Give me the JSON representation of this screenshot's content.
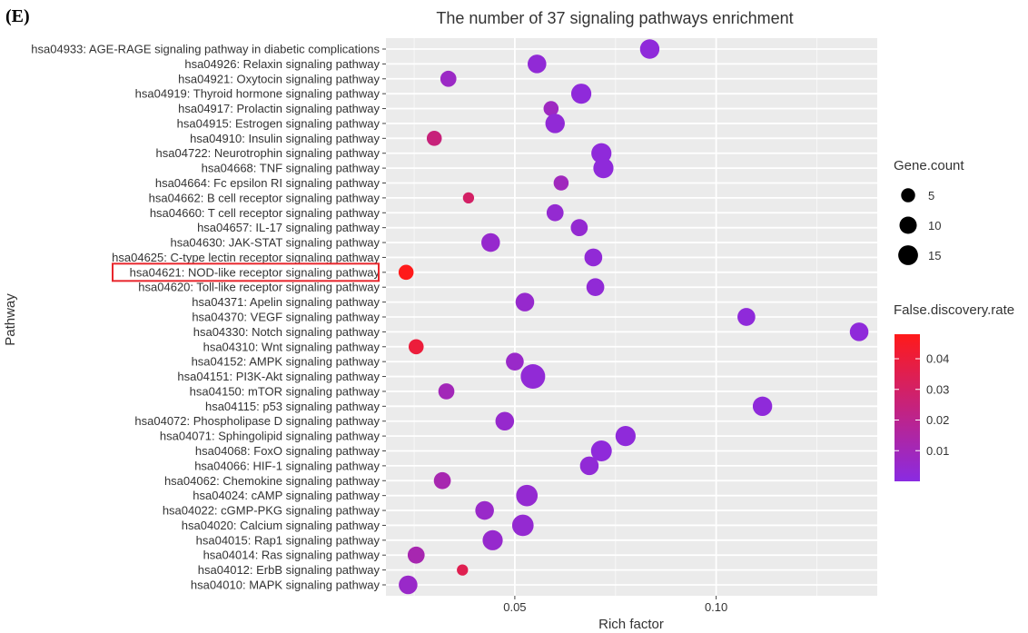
{
  "panel_label": "(E)",
  "chart_data": {
    "type": "scatter",
    "title": "The number of 37 signaling pathways enrichment",
    "xlabel": "Rich factor",
    "ylabel": "Pathway",
    "xlim": [
      0.018,
      0.14
    ],
    "xticks": [
      0.05,
      0.1
    ],
    "xtick_labels": [
      "0.05",
      "0.10"
    ],
    "grid": true,
    "highlighted_pathway": "hsa04621: NOD-like receptor signaling pathway",
    "highlight_color": "#e8262c",
    "size_legend": {
      "title": "Gene.count",
      "values": [
        5,
        10,
        15
      ],
      "labels": [
        "5",
        "10",
        "15"
      ]
    },
    "color_legend": {
      "title": "False.discovery.rate",
      "range": [
        0.0,
        0.048
      ],
      "ticks": [
        0.01,
        0.02,
        0.03,
        0.04
      ],
      "tick_labels": [
        "0.01",
        "0.02",
        "0.03",
        "0.04"
      ],
      "low_color": "#8a2be2",
      "high_color": "#ff1a1a"
    },
    "points": [
      {
        "pathway": "hsa04933: AGE-RAGE signaling pathway in diabetic complications",
        "rich_factor": 0.0835,
        "gene_count": 10,
        "fdr": 0.002
      },
      {
        "pathway": "hsa04926: Relaxin signaling pathway",
        "rich_factor": 0.0555,
        "gene_count": 9,
        "fdr": 0.003
      },
      {
        "pathway": "hsa04921: Oxytocin signaling pathway",
        "rich_factor": 0.0335,
        "gene_count": 6,
        "fdr": 0.007
      },
      {
        "pathway": "hsa04919: Thyroid hormone signaling pathway",
        "rich_factor": 0.0665,
        "gene_count": 11,
        "fdr": 0.002
      },
      {
        "pathway": "hsa04917: Prolactin signaling pathway",
        "rich_factor": 0.059,
        "gene_count": 5,
        "fdr": 0.008
      },
      {
        "pathway": "hsa04915: Estrogen signaling pathway",
        "rich_factor": 0.06,
        "gene_count": 10,
        "fdr": 0.003
      },
      {
        "pathway": "hsa04910: Insulin signaling pathway",
        "rich_factor": 0.03,
        "gene_count": 5,
        "fdr": 0.025
      },
      {
        "pathway": "hsa04722: Neurotrophin signaling pathway",
        "rich_factor": 0.0715,
        "gene_count": 11,
        "fdr": 0.002
      },
      {
        "pathway": "hsa04668: TNF signaling pathway",
        "rich_factor": 0.072,
        "gene_count": 11,
        "fdr": 0.002
      },
      {
        "pathway": "hsa04664: Fc epsilon RI signaling pathway",
        "rich_factor": 0.0615,
        "gene_count": 5,
        "fdr": 0.009
      },
      {
        "pathway": "hsa04662: B cell receptor signaling pathway",
        "rich_factor": 0.0385,
        "gene_count": 2,
        "fdr": 0.03
      },
      {
        "pathway": "hsa04660: T cell receptor signaling pathway",
        "rich_factor": 0.06,
        "gene_count": 7,
        "fdr": 0.004
      },
      {
        "pathway": "hsa04657: IL-17 signaling pathway",
        "rich_factor": 0.066,
        "gene_count": 7,
        "fdr": 0.004
      },
      {
        "pathway": "hsa04630: JAK-STAT signaling pathway",
        "rich_factor": 0.044,
        "gene_count": 9,
        "fdr": 0.005
      },
      {
        "pathway": "hsa04625: C-type lectin receptor signaling pathway",
        "rich_factor": 0.0695,
        "gene_count": 8,
        "fdr": 0.003
      },
      {
        "pathway": "hsa04621: NOD-like receptor signaling pathway",
        "rich_factor": 0.023,
        "gene_count": 5,
        "fdr": 0.048
      },
      {
        "pathway": "hsa04620: Toll-like receptor signaling pathway",
        "rich_factor": 0.07,
        "gene_count": 8,
        "fdr": 0.003
      },
      {
        "pathway": "hsa04371: Apelin signaling pathway",
        "rich_factor": 0.0525,
        "gene_count": 9,
        "fdr": 0.005
      },
      {
        "pathway": "hsa04370: VEGF signaling pathway",
        "rich_factor": 0.1075,
        "gene_count": 8,
        "fdr": 0.002
      },
      {
        "pathway": "hsa04330: Notch signaling pathway",
        "rich_factor": 0.1355,
        "gene_count": 9,
        "fdr": 0.002
      },
      {
        "pathway": "hsa04310: Wnt signaling pathway",
        "rich_factor": 0.0255,
        "gene_count": 5,
        "fdr": 0.04
      },
      {
        "pathway": "hsa04152: AMPK signaling pathway",
        "rich_factor": 0.05,
        "gene_count": 8,
        "fdr": 0.006
      },
      {
        "pathway": "hsa04151: PI3K-Akt signaling pathway",
        "rich_factor": 0.0545,
        "gene_count": 18,
        "fdr": 0.003
      },
      {
        "pathway": "hsa04150: mTOR signaling pathway",
        "rich_factor": 0.033,
        "gene_count": 6,
        "fdr": 0.01
      },
      {
        "pathway": "hsa04115: p53 signaling pathway",
        "rich_factor": 0.1115,
        "gene_count": 10,
        "fdr": 0.002
      },
      {
        "pathway": "hsa04072: Phospholipase D signaling pathway",
        "rich_factor": 0.0475,
        "gene_count": 9,
        "fdr": 0.005
      },
      {
        "pathway": "hsa04071: Sphingolipid signaling pathway",
        "rich_factor": 0.0775,
        "gene_count": 11,
        "fdr": 0.002
      },
      {
        "pathway": "hsa04068: FoxO signaling pathway",
        "rich_factor": 0.0715,
        "gene_count": 12,
        "fdr": 0.002
      },
      {
        "pathway": "hsa04066: HIF-1 signaling pathway",
        "rich_factor": 0.0685,
        "gene_count": 9,
        "fdr": 0.003
      },
      {
        "pathway": "hsa04062: Chemokine signaling pathway",
        "rich_factor": 0.032,
        "gene_count": 7,
        "fdr": 0.012
      },
      {
        "pathway": "hsa04024: cAMP signaling pathway",
        "rich_factor": 0.053,
        "gene_count": 13,
        "fdr": 0.004
      },
      {
        "pathway": "hsa04022: cGMP-PKG signaling pathway",
        "rich_factor": 0.0425,
        "gene_count": 9,
        "fdr": 0.006
      },
      {
        "pathway": "hsa04020: Calcium signaling pathway",
        "rich_factor": 0.052,
        "gene_count": 13,
        "fdr": 0.004
      },
      {
        "pathway": "hsa04015: Rap1 signaling pathway",
        "rich_factor": 0.0445,
        "gene_count": 11,
        "fdr": 0.005
      },
      {
        "pathway": "hsa04014: Ras signaling pathway",
        "rich_factor": 0.0255,
        "gene_count": 7,
        "fdr": 0.012
      },
      {
        "pathway": "hsa04012: ErbB signaling pathway",
        "rich_factor": 0.037,
        "gene_count": 2,
        "fdr": 0.035
      },
      {
        "pathway": "hsa04010: MAPK signaling pathway",
        "rich_factor": 0.0235,
        "gene_count": 9,
        "fdr": 0.006
      }
    ]
  }
}
